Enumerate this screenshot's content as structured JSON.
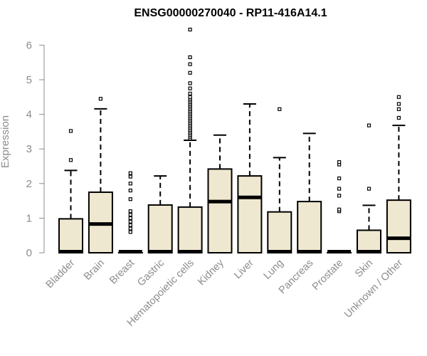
{
  "chart_data": {
    "type": "boxplot",
    "title": "ENSG00000270040 - RP11-416A14.1",
    "ylabel": "Expression",
    "xlabel": "",
    "ylim": [
      0,
      6.6
    ],
    "yticks": [
      0,
      1,
      2,
      3,
      4,
      5,
      6
    ],
    "grid": false,
    "box_color": "#efe8d0",
    "categories": [
      "Bladder",
      "Brain",
      "Breast",
      "Gastric",
      "Hematopoietic cells",
      "Kidney",
      "Liver",
      "Lung",
      "Pancreas",
      "Prostate",
      "Skin",
      "Unknown / Other"
    ],
    "boxes": [
      {
        "min": 0,
        "q1": 0,
        "median": 0,
        "q3": 0.98,
        "max": 2.38,
        "outliers": [
          2.68,
          3.52
        ]
      },
      {
        "min": 0,
        "q1": 0,
        "median": 0.83,
        "q3": 1.75,
        "max": 4.16,
        "outliers": [
          4.45
        ]
      },
      {
        "min": 0,
        "q1": 0,
        "median": 0,
        "q3": 0,
        "max": 0,
        "outliers": [
          0.6,
          0.7,
          0.8,
          0.9,
          1.0,
          1.1,
          1.2,
          1.55,
          1.8,
          2.0,
          2.2,
          2.3
        ]
      },
      {
        "min": 0,
        "q1": 0,
        "median": 0,
        "q3": 1.38,
        "max": 2.22,
        "outliers": []
      },
      {
        "min": 0,
        "q1": 0,
        "median": 0,
        "q3": 1.32,
        "max": 3.25,
        "outliers": [
          3.3,
          3.35,
          3.4,
          3.45,
          3.5,
          3.55,
          3.6,
          3.65,
          3.7,
          3.75,
          3.8,
          3.85,
          3.9,
          3.95,
          4.0,
          4.05,
          4.1,
          4.15,
          4.2,
          4.25,
          4.3,
          4.35,
          4.4,
          4.45,
          4.5,
          4.6,
          4.75,
          4.9,
          5.2,
          5.45,
          5.65,
          6.45
        ]
      },
      {
        "min": 0,
        "q1": 0,
        "median": 1.48,
        "q3": 2.42,
        "max": 3.4,
        "outliers": []
      },
      {
        "min": 0,
        "q1": 0,
        "median": 1.6,
        "q3": 2.22,
        "max": 4.3,
        "outliers": []
      },
      {
        "min": 0,
        "q1": 0,
        "median": 0,
        "q3": 1.18,
        "max": 2.75,
        "outliers": [
          4.15
        ]
      },
      {
        "min": 0,
        "q1": 0,
        "median": 0,
        "q3": 1.48,
        "max": 3.45,
        "outliers": []
      },
      {
        "min": 0,
        "q1": 0,
        "median": 0,
        "q3": 0,
        "max": 0,
        "outliers": [
          1.2,
          1.25,
          1.65,
          1.85,
          2.15,
          2.55,
          2.62
        ]
      },
      {
        "min": 0,
        "q1": 0,
        "median": 0,
        "q3": 0.65,
        "max": 1.37,
        "outliers": [
          1.85,
          3.68
        ]
      },
      {
        "min": 0,
        "q1": 0,
        "median": 0.42,
        "q3": 1.52,
        "max": 3.68,
        "outliers": [
          3.9,
          4.15,
          4.3,
          4.5
        ]
      }
    ]
  }
}
